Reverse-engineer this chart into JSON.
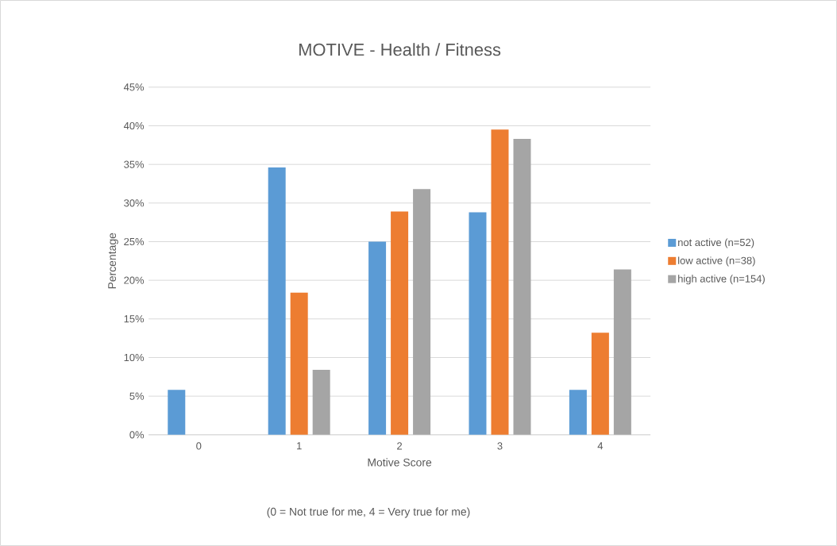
{
  "chart_data": {
    "type": "bar",
    "title": "MOTIVE - Health / Fitness",
    "xlabel": "Motive Score",
    "ylabel": "Percentage",
    "annotations": [
      "(0 = Not true for me, 4 = Very true for me)"
    ],
    "categories": [
      "0",
      "1",
      "2",
      "3",
      "4"
    ],
    "series": [
      {
        "name": "not active (n=52)",
        "color": "#5b9bd5",
        "values": [
          5.8,
          34.6,
          25.0,
          28.8,
          5.8
        ]
      },
      {
        "name": "low active (n=38)",
        "color": "#ed7d31",
        "values": [
          0,
          18.4,
          28.9,
          39.5,
          13.2
        ]
      },
      {
        "name": "high active (n=154)",
        "color": "#a5a5a5",
        "values": [
          0,
          8.4,
          31.8,
          38.3,
          21.4
        ]
      }
    ],
    "ylim": [
      0,
      45
    ],
    "yticks": [
      {
        "value": 0,
        "label": "0%"
      },
      {
        "value": 5,
        "label": "5%"
      },
      {
        "value": 10,
        "label": "10%"
      },
      {
        "value": 15,
        "label": "15%"
      },
      {
        "value": 20,
        "label": "20%"
      },
      {
        "value": 25,
        "label": "25%"
      },
      {
        "value": 30,
        "label": "30%"
      },
      {
        "value": 35,
        "label": "35%"
      },
      {
        "value": 40,
        "label": "40%"
      },
      {
        "value": 45,
        "label": "45%"
      }
    ],
    "grid": "y",
    "legend": "right"
  }
}
